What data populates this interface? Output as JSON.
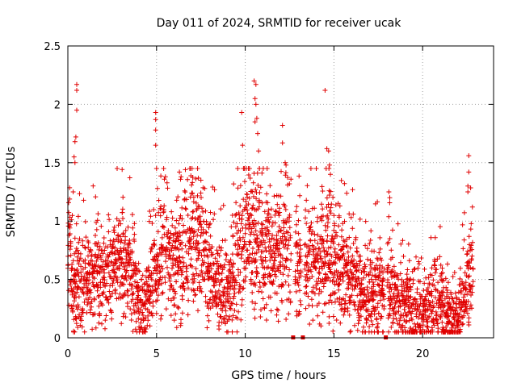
{
  "chart_data": {
    "type": "scatter",
    "title": "Day 011 of 2024, SRMTID for receiver ucak",
    "xlabel": "GPS time / hours",
    "ylabel": "SRMTID / TECUs",
    "xlim": [
      0,
      24
    ],
    "ylim": [
      0,
      2.5
    ],
    "xticks": [
      "0",
      "5",
      "10",
      "15",
      "20"
    ],
    "yticks": [
      "0",
      "0.5",
      "1",
      "1.5",
      "2",
      "2.5"
    ],
    "grid": true,
    "marker": "+",
    "color": "#e00000",
    "anchors": [
      {
        "x": 0.0,
        "y": 0.58
      },
      {
        "x": 0.1,
        "y": 0.95
      },
      {
        "x": 0.3,
        "y": 0.3
      },
      {
        "x": 0.5,
        "y": 0.55
      },
      {
        "x": 0.7,
        "y": 0.5
      },
      {
        "x": 1.0,
        "y": 0.48
      },
      {
        "x": 1.3,
        "y": 0.45
      },
      {
        "x": 1.6,
        "y": 0.58
      },
      {
        "x": 2.0,
        "y": 0.52
      },
      {
        "x": 2.5,
        "y": 0.65
      },
      {
        "x": 3.0,
        "y": 0.6
      },
      {
        "x": 3.5,
        "y": 0.62
      },
      {
        "x": 4.0,
        "y": 0.32
      },
      {
        "x": 4.4,
        "y": 0.25
      },
      {
        "x": 4.8,
        "y": 0.5
      },
      {
        "x": 5.2,
        "y": 0.68
      },
      {
        "x": 5.6,
        "y": 0.72
      },
      {
        "x": 6.0,
        "y": 0.62
      },
      {
        "x": 6.5,
        "y": 0.65
      },
      {
        "x": 7.0,
        "y": 0.9
      },
      {
        "x": 7.5,
        "y": 0.85
      },
      {
        "x": 8.0,
        "y": 0.55
      },
      {
        "x": 8.5,
        "y": 0.45
      },
      {
        "x": 9.0,
        "y": 0.35
      },
      {
        "x": 9.5,
        "y": 0.6
      },
      {
        "x": 10.0,
        "y": 0.9
      },
      {
        "x": 10.5,
        "y": 0.85
      },
      {
        "x": 11.0,
        "y": 0.75
      },
      {
        "x": 11.5,
        "y": 0.7
      },
      {
        "x": 12.0,
        "y": 0.75
      },
      {
        "x": 12.5,
        "y": 0.8
      },
      {
        "x": 13.0,
        "y": 0.65
      },
      {
        "x": 13.5,
        "y": 0.7
      },
      {
        "x": 14.0,
        "y": 0.62
      },
      {
        "x": 14.5,
        "y": 0.75
      },
      {
        "x": 15.0,
        "y": 0.65
      },
      {
        "x": 15.5,
        "y": 0.58
      },
      {
        "x": 16.0,
        "y": 0.5
      },
      {
        "x": 16.5,
        "y": 0.35
      },
      {
        "x": 17.0,
        "y": 0.4
      },
      {
        "x": 17.5,
        "y": 0.42
      },
      {
        "x": 18.0,
        "y": 0.48
      },
      {
        "x": 18.5,
        "y": 0.32
      },
      {
        "x": 19.0,
        "y": 0.3
      },
      {
        "x": 19.5,
        "y": 0.25
      },
      {
        "x": 20.0,
        "y": 0.22
      },
      {
        "x": 20.5,
        "y": 0.28
      },
      {
        "x": 21.0,
        "y": 0.32
      },
      {
        "x": 21.5,
        "y": 0.2
      },
      {
        "x": 22.0,
        "y": 0.15
      },
      {
        "x": 22.5,
        "y": 0.45
      },
      {
        "x": 22.8,
        "y": 0.6
      }
    ],
    "gaps": [
      [
        12.6,
        12.8
      ],
      [
        13.15,
        13.35
      ],
      [
        17.85,
        18.0
      ]
    ],
    "spikes": [
      {
        "x": 0.5,
        "y": 2.17
      },
      {
        "x": 0.5,
        "y": 2.12
      },
      {
        "x": 0.5,
        "y": 1.95
      },
      {
        "x": 0.45,
        "y": 1.72
      },
      {
        "x": 0.4,
        "y": 1.68
      },
      {
        "x": 0.35,
        "y": 1.55
      },
      {
        "x": 0.4,
        "y": 1.5
      },
      {
        "x": 0.3,
        "y": 1.25
      },
      {
        "x": 4.95,
        "y": 1.93
      },
      {
        "x": 4.95,
        "y": 1.87
      },
      {
        "x": 4.95,
        "y": 1.78
      },
      {
        "x": 4.95,
        "y": 1.65
      },
      {
        "x": 5.0,
        "y": 1.45
      },
      {
        "x": 5.05,
        "y": 1.28
      },
      {
        "x": 5.4,
        "y": 1.45
      },
      {
        "x": 5.5,
        "y": 1.38
      },
      {
        "x": 9.8,
        "y": 1.93
      },
      {
        "x": 9.85,
        "y": 1.65
      },
      {
        "x": 9.9,
        "y": 1.45
      },
      {
        "x": 10.5,
        "y": 2.2
      },
      {
        "x": 10.6,
        "y": 2.17
      },
      {
        "x": 10.55,
        "y": 2.05
      },
      {
        "x": 10.6,
        "y": 2.0
      },
      {
        "x": 10.65,
        "y": 1.88
      },
      {
        "x": 10.55,
        "y": 1.85
      },
      {
        "x": 10.7,
        "y": 1.75
      },
      {
        "x": 10.75,
        "y": 1.6
      },
      {
        "x": 10.8,
        "y": 1.45
      },
      {
        "x": 12.1,
        "y": 1.82
      },
      {
        "x": 12.1,
        "y": 1.67
      },
      {
        "x": 12.25,
        "y": 1.5
      },
      {
        "x": 12.3,
        "y": 1.48
      },
      {
        "x": 14.5,
        "y": 2.12
      },
      {
        "x": 14.6,
        "y": 1.62
      },
      {
        "x": 14.7,
        "y": 1.6
      },
      {
        "x": 14.75,
        "y": 1.48
      },
      {
        "x": 14.8,
        "y": 1.4
      },
      {
        "x": 22.6,
        "y": 1.56
      },
      {
        "x": 22.6,
        "y": 1.42
      },
      {
        "x": 22.55,
        "y": 1.3
      },
      {
        "x": 22.55,
        "y": 1.25
      },
      {
        "x": 7.0,
        "y": 1.45
      },
      {
        "x": 7.5,
        "y": 1.35
      },
      {
        "x": 18.1,
        "y": 1.25
      },
      {
        "x": 18.15,
        "y": 1.2
      }
    ]
  }
}
